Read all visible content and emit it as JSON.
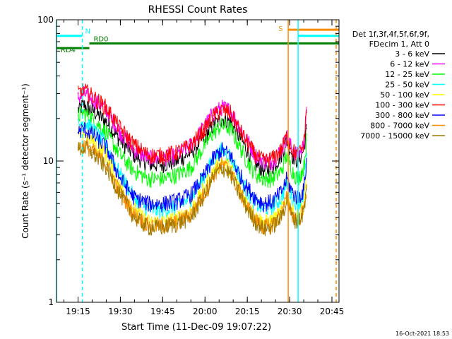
{
  "chart_data": {
    "type": "line",
    "title": "RHESSI Count Rates",
    "xlabel": "Start Time (11-Dec-09 19:07:22)",
    "ylabel": "Count Rate (s⁻¹ detector segment⁻¹)",
    "yscale": "log",
    "ylim": [
      1,
      100
    ],
    "y_ticks": [
      "1",
      "10",
      "100"
    ],
    "x_range_minutes": [
      "19:07:22",
      "20:47:30"
    ],
    "x_ticks": [
      "19:15",
      "19:30",
      "19:45",
      "20:00",
      "20:15",
      "20:30",
      "20:45"
    ],
    "timestamp": "16-Oct-2021 18:53",
    "legend_header": [
      "Det 1f,3f,4f,5f,6f,9f,",
      "FDecim 1, Att 0"
    ],
    "legend_position": "right",
    "x_times": [
      "19:15",
      "19:17",
      "19:20",
      "19:25",
      "19:30",
      "19:35",
      "19:40",
      "19:45",
      "19:50",
      "19:55",
      "20:00",
      "20:03",
      "20:06",
      "20:09",
      "20:12",
      "20:15",
      "20:18",
      "20:21",
      "20:24",
      "20:27",
      "20:29",
      "20:31",
      "20:33",
      "20:35",
      "20:36"
    ],
    "series": [
      {
        "name": "3 - 6 keV",
        "color": "#000000",
        "values": [
          23,
          25,
          23,
          19,
          14,
          11,
          9.5,
          9.5,
          10,
          11.5,
          15,
          18,
          20,
          19,
          15,
          12,
          9.5,
          8.5,
          9,
          11,
          14,
          11,
          10,
          12,
          17
        ]
      },
      {
        "name": "6 - 12 keV",
        "color": "#ff00ff",
        "values": [
          28,
          30,
          28,
          23,
          16,
          12,
          10.5,
          10.5,
          11,
          13,
          18,
          22,
          24,
          23,
          18,
          14,
          11,
          10,
          10,
          12,
          15,
          12,
          11,
          13,
          22
        ]
      },
      {
        "name": "12 - 25 keV",
        "color": "#00ff00",
        "values": [
          21,
          22,
          20,
          16,
          11,
          8.5,
          7.5,
          7.5,
          8,
          9,
          13,
          16,
          18,
          17,
          13,
          10,
          8,
          7.5,
          7.5,
          8.5,
          11,
          8.5,
          7.5,
          9,
          14
        ]
      },
      {
        "name": "25 - 50 keV",
        "color": "#00ffff",
        "values": [
          18,
          19,
          17,
          13,
          8,
          5.5,
          4.5,
          4.5,
          4.7,
          5.5,
          8,
          10.5,
          12,
          11,
          8,
          6,
          5,
          4.6,
          4.8,
          5.5,
          7,
          5.5,
          5,
          5.8,
          11
        ]
      },
      {
        "name": "50 - 100 keV",
        "color": "#ffff00",
        "values": [
          15,
          16,
          14,
          11,
          6.5,
          4.5,
          3.7,
          3.7,
          3.9,
          4.5,
          6.5,
          8.5,
          10,
          9,
          6.5,
          5,
          4,
          3.7,
          3.8,
          4.4,
          5.8,
          4.4,
          4,
          4.8,
          9
        ]
      },
      {
        "name": "100 - 300 keV",
        "color": "#ff0000",
        "values": [
          30,
          32,
          29,
          24,
          17,
          13,
          11,
          11,
          11.5,
          13,
          17,
          21,
          23,
          22,
          17,
          13.5,
          11,
          10,
          10.5,
          12,
          15,
          12,
          11,
          13,
          24
        ]
      },
      {
        "name": "300 - 800 keV",
        "color": "#0000ff",
        "values": [
          16,
          17,
          15.5,
          12.5,
          7.5,
          5.5,
          5,
          5,
          5.2,
          5.8,
          8,
          10.5,
          12,
          11,
          8.2,
          6.5,
          5.5,
          5,
          5.2,
          6,
          7.5,
          6,
          5.5,
          6.2,
          10
        ]
      },
      {
        "name": "800 - 7000 keV",
        "color": "#ff8c00",
        "values": [
          12.5,
          13,
          12,
          9.5,
          6,
          4.2,
          3.5,
          3.5,
          3.7,
          4.2,
          6,
          8,
          9.5,
          8.5,
          6.2,
          4.8,
          3.8,
          3.4,
          3.6,
          4.2,
          5.5,
          4.2,
          3.8,
          4.5,
          6.5
        ]
      },
      {
        "name": "7000 - 15000 keV",
        "color": "#a07800",
        "values": [
          12,
          12.5,
          11.5,
          9,
          5.8,
          4,
          3.4,
          3.4,
          3.6,
          4,
          5.8,
          7.8,
          9,
          8.2,
          6,
          4.6,
          3.7,
          3.3,
          3.5,
          4,
          5.3,
          4,
          3.7,
          4.4,
          6.3
        ]
      }
    ],
    "attenuator_bars": [
      {
        "label": "",
        "color": "#00ffff",
        "y_value": 77,
        "x_start": "19:07:22",
        "x_end": "19:16:30"
      },
      {
        "label": "N",
        "color": "#00ffff",
        "y_value": 77,
        "x_start": "19:16:30",
        "x_end": "19:16:30"
      },
      {
        "label": "RD0",
        "color": "#008000",
        "y_value": 68,
        "x_start": "19:19:00",
        "x_end": "20:47:30"
      },
      {
        "label": "RD4",
        "color": "#008000",
        "y_value": 63,
        "x_start": "19:07:22",
        "x_end": "19:19:00"
      },
      {
        "label": "S",
        "color": "#ff8c00",
        "y_value": 85,
        "x_start": "20:29:30",
        "x_end": "20:47:30"
      },
      {
        "label": "",
        "color": "#00ffff",
        "y_value": 77,
        "x_start": "20:33:00",
        "x_end": "20:47:30"
      }
    ],
    "vertical_markers": [
      {
        "color": "#00ffff",
        "style": "solid",
        "time": "19:07:22"
      },
      {
        "color": "#00ffff",
        "style": "dashed",
        "time": "19:16:30"
      },
      {
        "color": "#ff8c00",
        "style": "solid",
        "time": "20:29:30"
      },
      {
        "color": "#00ffff",
        "style": "solid",
        "time": "20:33:00"
      },
      {
        "color": "#ff8c00",
        "style": "dashed",
        "time": "20:46:30"
      }
    ]
  }
}
